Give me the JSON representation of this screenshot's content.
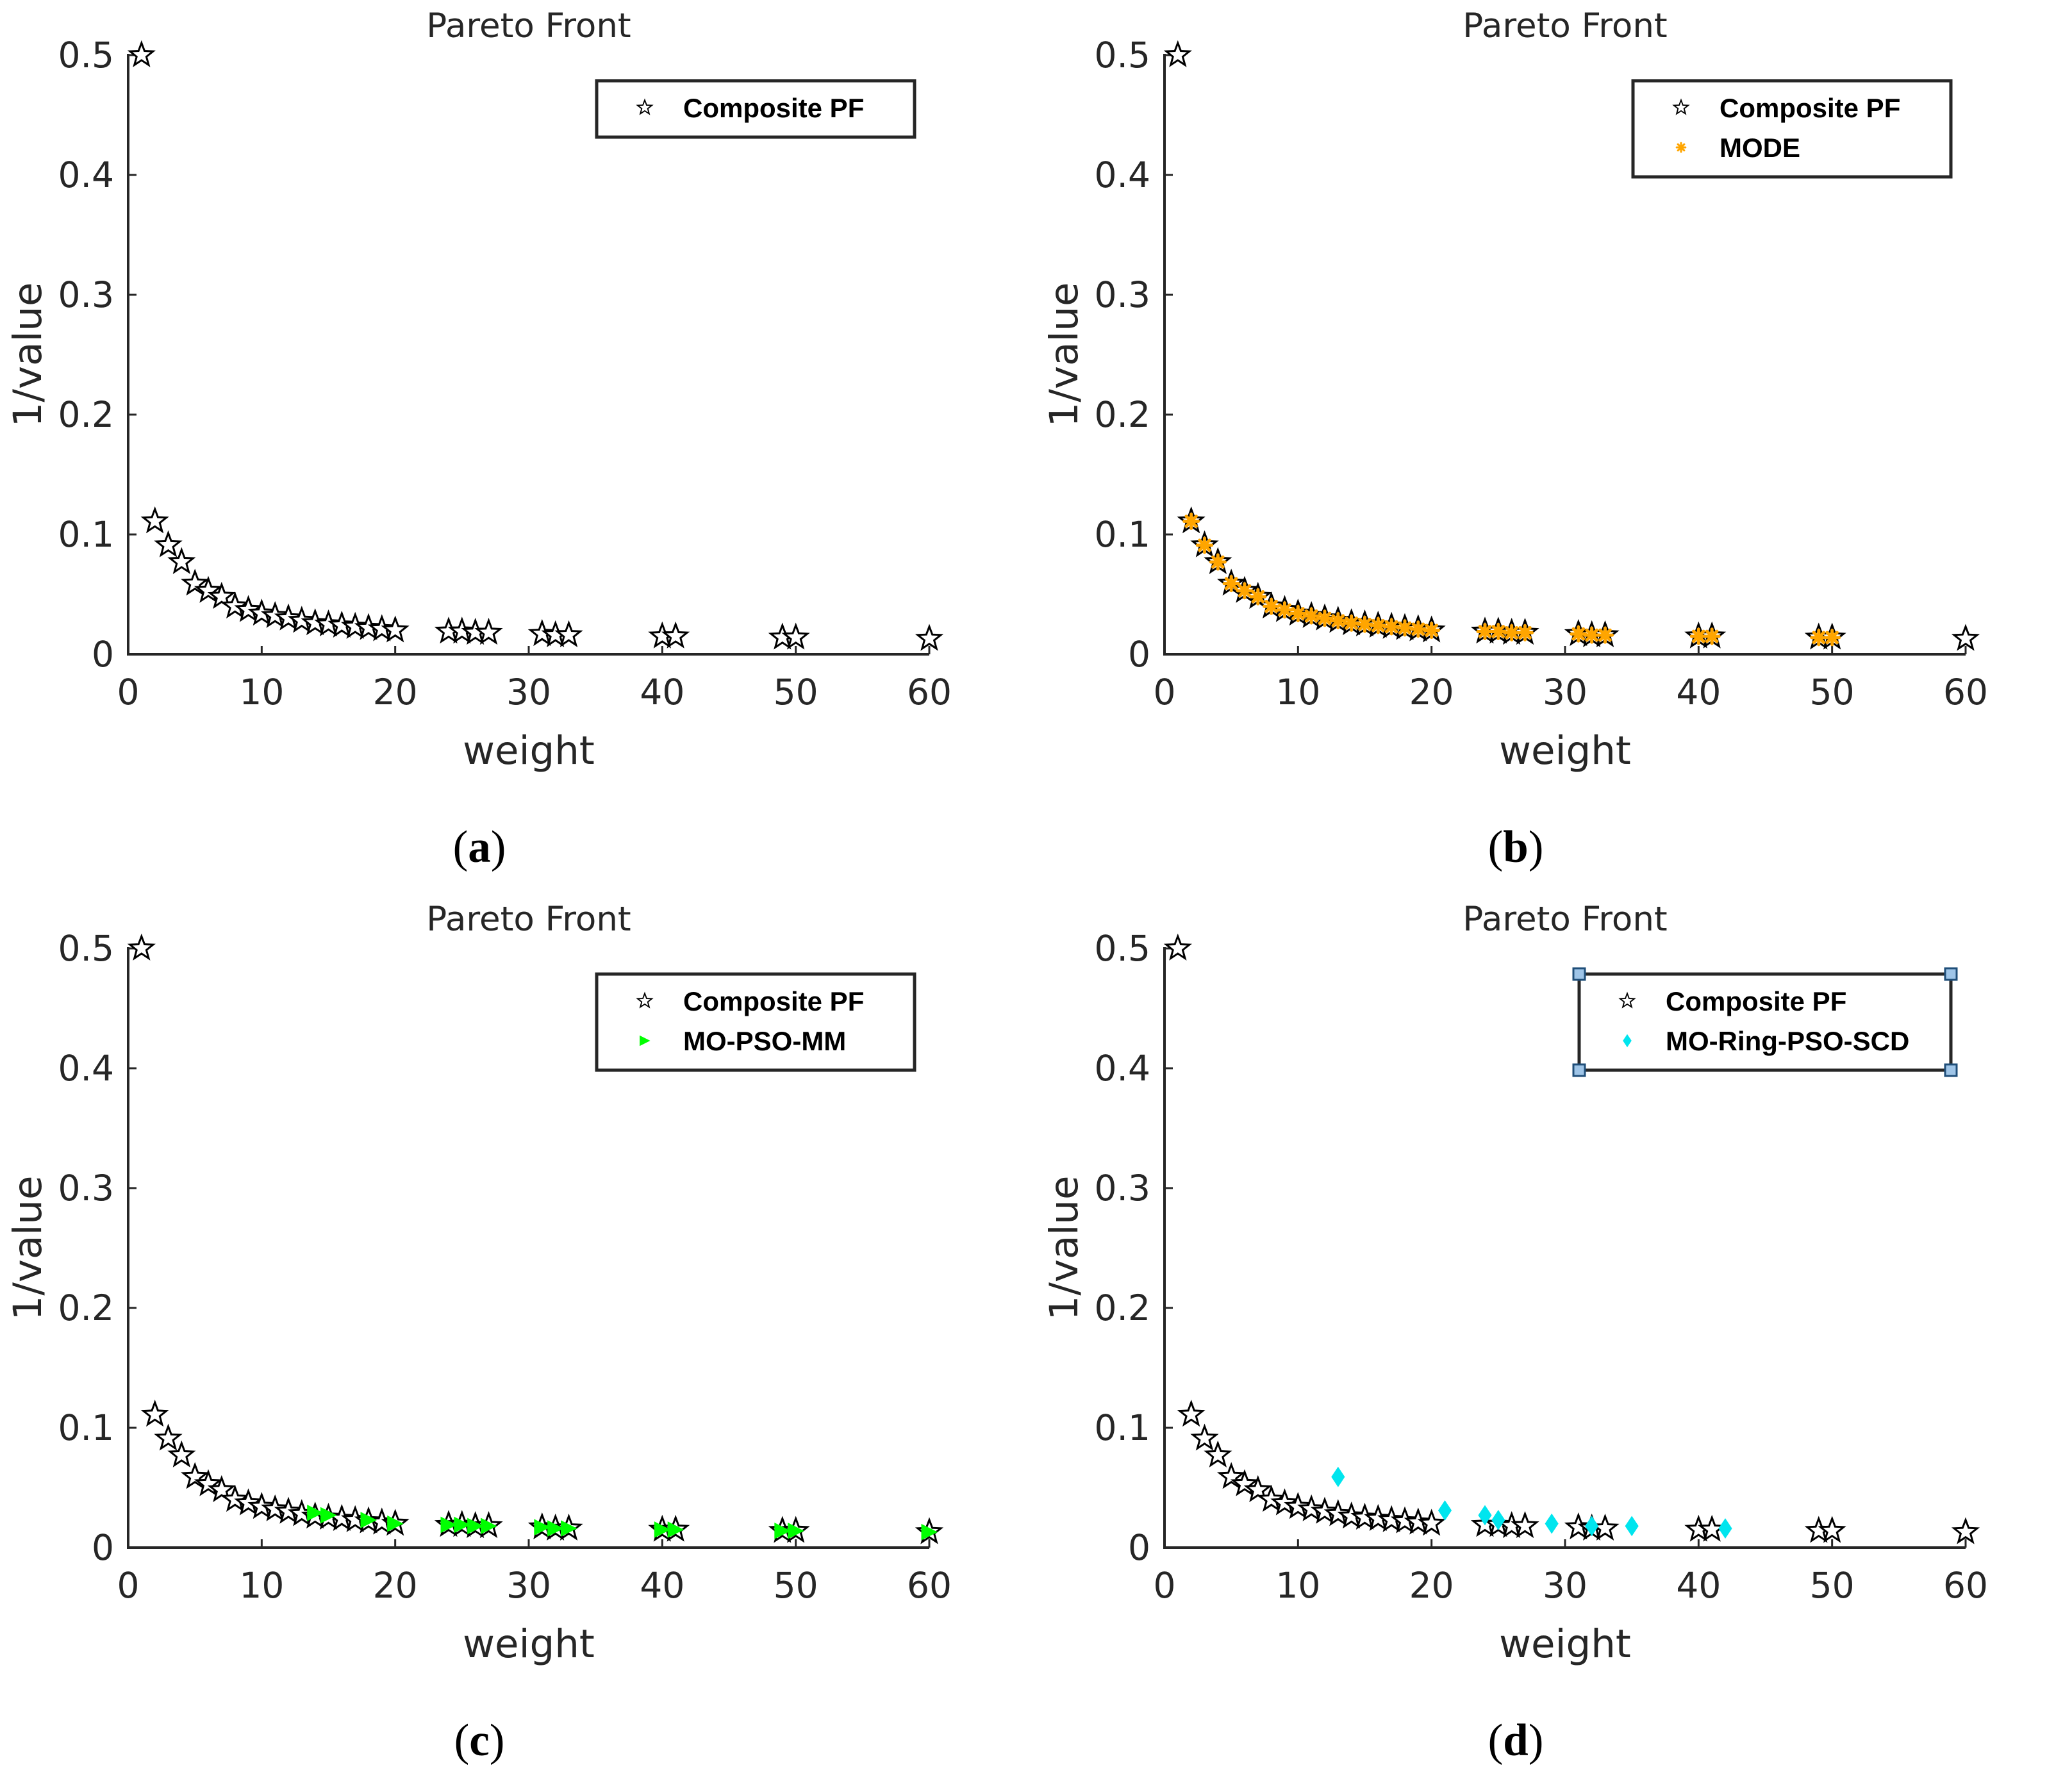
{
  "chart_data": [
    {
      "panel": "a",
      "type": "scatter",
      "title": "Pareto Front",
      "xlabel": "weight",
      "ylabel": "1/value",
      "xlim": [
        0,
        60
      ],
      "ylim": [
        0,
        0.5
      ],
      "xticks": [
        0,
        10,
        20,
        30,
        40,
        50,
        60
      ],
      "yticks": [
        0,
        0.1,
        0.2,
        0.3,
        0.4,
        0.5
      ],
      "caption": "a",
      "legend_position": "top-right",
      "series": [
        {
          "name": "Composite PF",
          "marker": "star",
          "color": "#ffffff",
          "x": [
            1,
            2,
            3,
            4,
            5,
            6,
            7,
            8,
            9,
            10,
            11,
            12,
            13,
            14,
            15,
            16,
            17,
            18,
            19,
            20,
            24,
            25,
            26,
            27,
            31,
            32,
            33,
            40,
            41,
            49,
            50,
            60
          ],
          "y": [
            0.5,
            0.111,
            0.091,
            0.077,
            0.059,
            0.053,
            0.048,
            0.04,
            0.037,
            0.034,
            0.032,
            0.03,
            0.028,
            0.026,
            0.025,
            0.024,
            0.023,
            0.022,
            0.021,
            0.02,
            0.019,
            0.019,
            0.018,
            0.018,
            0.017,
            0.016,
            0.016,
            0.015,
            0.015,
            0.014,
            0.014,
            0.013
          ]
        }
      ]
    },
    {
      "panel": "b",
      "type": "scatter",
      "title": "Pareto Front",
      "xlabel": "weight",
      "ylabel": "1/value",
      "xlim": [
        0,
        60
      ],
      "ylim": [
        0,
        0.5
      ],
      "xticks": [
        0,
        10,
        20,
        30,
        40,
        50,
        60
      ],
      "yticks": [
        0,
        0.1,
        0.2,
        0.3,
        0.4,
        0.5
      ],
      "caption": "b",
      "legend_position": "top-right",
      "series": [
        {
          "name": "Composite PF",
          "marker": "star",
          "color": "#ffffff",
          "x": [
            1,
            2,
            3,
            4,
            5,
            6,
            7,
            8,
            9,
            10,
            11,
            12,
            13,
            14,
            15,
            16,
            17,
            18,
            19,
            20,
            24,
            25,
            26,
            27,
            31,
            32,
            33,
            40,
            41,
            49,
            50,
            60
          ],
          "y": [
            0.5,
            0.111,
            0.091,
            0.077,
            0.059,
            0.053,
            0.048,
            0.04,
            0.037,
            0.034,
            0.032,
            0.03,
            0.028,
            0.026,
            0.025,
            0.024,
            0.023,
            0.022,
            0.021,
            0.02,
            0.019,
            0.019,
            0.018,
            0.018,
            0.017,
            0.016,
            0.016,
            0.015,
            0.015,
            0.014,
            0.014,
            0.013
          ]
        },
        {
          "name": "MODE",
          "marker": "asterisk",
          "color": "#ffa500",
          "x": [
            2,
            3,
            4,
            5,
            6,
            7,
            8,
            9,
            10,
            11,
            12,
            13,
            14,
            15,
            16,
            17,
            18,
            19,
            20,
            24,
            25,
            26,
            27,
            31,
            32,
            33,
            40,
            41,
            49,
            50
          ],
          "y": [
            0.111,
            0.091,
            0.077,
            0.059,
            0.053,
            0.048,
            0.04,
            0.037,
            0.034,
            0.032,
            0.03,
            0.028,
            0.026,
            0.025,
            0.024,
            0.023,
            0.022,
            0.021,
            0.02,
            0.019,
            0.019,
            0.018,
            0.018,
            0.017,
            0.016,
            0.016,
            0.015,
            0.015,
            0.014,
            0.014
          ]
        }
      ]
    },
    {
      "panel": "c",
      "type": "scatter",
      "title": "Pareto Front",
      "xlabel": "weight",
      "ylabel": "1/value",
      "xlim": [
        0,
        60
      ],
      "ylim": [
        0,
        0.5
      ],
      "xticks": [
        0,
        10,
        20,
        30,
        40,
        50,
        60
      ],
      "yticks": [
        0,
        0.1,
        0.2,
        0.3,
        0.4,
        0.5
      ],
      "caption": "c",
      "legend_position": "top-right",
      "series": [
        {
          "name": "Composite PF",
          "marker": "star",
          "color": "#ffffff",
          "x": [
            1,
            2,
            3,
            4,
            5,
            6,
            7,
            8,
            9,
            10,
            11,
            12,
            13,
            14,
            15,
            16,
            17,
            18,
            19,
            20,
            24,
            25,
            26,
            27,
            31,
            32,
            33,
            40,
            41,
            49,
            50,
            60
          ],
          "y": [
            0.5,
            0.111,
            0.091,
            0.077,
            0.059,
            0.053,
            0.048,
            0.04,
            0.037,
            0.034,
            0.032,
            0.03,
            0.028,
            0.026,
            0.025,
            0.024,
            0.023,
            0.022,
            0.021,
            0.02,
            0.019,
            0.019,
            0.018,
            0.018,
            0.017,
            0.016,
            0.016,
            0.015,
            0.015,
            0.014,
            0.014,
            0.013
          ]
        },
        {
          "name": "MO-PSO-MM",
          "marker": "triangle-right",
          "color": "#00ff00",
          "x": [
            14,
            15,
            18,
            20,
            24,
            25,
            26,
            27,
            31,
            32,
            33,
            40,
            41,
            49,
            50,
            60
          ],
          "y": [
            0.029,
            0.027,
            0.023,
            0.02,
            0.019,
            0.019,
            0.018,
            0.018,
            0.017,
            0.016,
            0.016,
            0.015,
            0.015,
            0.014,
            0.014,
            0.013
          ]
        }
      ]
    },
    {
      "panel": "d",
      "type": "scatter",
      "title": "Pareto Front",
      "xlabel": "weight",
      "ylabel": "1/value",
      "xlim": [
        0,
        60
      ],
      "ylim": [
        0,
        0.5
      ],
      "xticks": [
        0,
        10,
        20,
        30,
        40,
        50,
        60
      ],
      "yticks": [
        0,
        0.1,
        0.2,
        0.3,
        0.4,
        0.5
      ],
      "caption": "d",
      "legend_position": "top-right",
      "series": [
        {
          "name": "Composite PF",
          "marker": "star",
          "color": "#ffffff",
          "x": [
            1,
            2,
            3,
            4,
            5,
            6,
            7,
            8,
            9,
            10,
            11,
            12,
            13,
            14,
            15,
            16,
            17,
            18,
            19,
            20,
            24,
            25,
            26,
            27,
            31,
            32,
            33,
            40,
            41,
            49,
            50,
            60
          ],
          "y": [
            0.5,
            0.111,
            0.091,
            0.077,
            0.059,
            0.053,
            0.048,
            0.04,
            0.037,
            0.034,
            0.032,
            0.03,
            0.028,
            0.026,
            0.025,
            0.024,
            0.023,
            0.022,
            0.021,
            0.02,
            0.019,
            0.019,
            0.018,
            0.018,
            0.017,
            0.016,
            0.016,
            0.015,
            0.015,
            0.014,
            0.014,
            0.013
          ]
        },
        {
          "name": "MO-Ring-PSO-SCD",
          "marker": "diamond",
          "color": "#00e5ee",
          "x": [
            13,
            21,
            24,
            25,
            29,
            32,
            35,
            42
          ],
          "y": [
            0.059,
            0.031,
            0.027,
            0.023,
            0.02,
            0.018,
            0.018,
            0.016
          ]
        }
      ]
    }
  ]
}
